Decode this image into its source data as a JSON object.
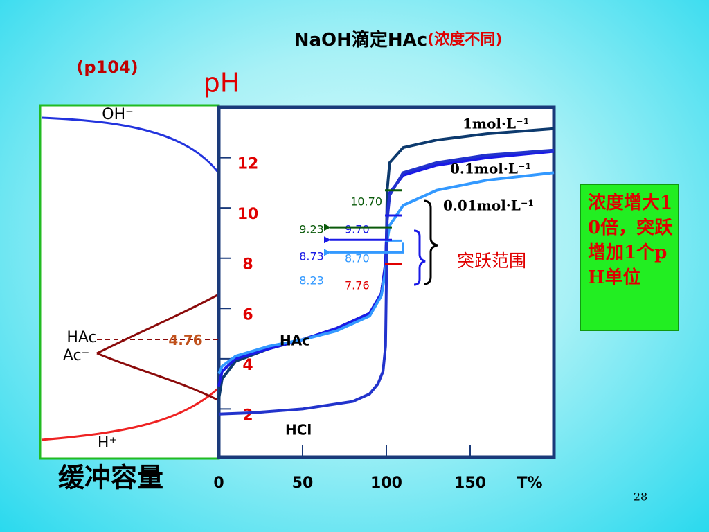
{
  "title": "NaOH滴定HAc",
  "title_suffix": "(浓度不同)",
  "page_ref": "(p104)",
  "species": [
    "OH⁻",
    "HAc",
    "Ac⁻",
    "H⁺"
  ],
  "buffer_label": "缓冲容量",
  "jump_label": "突跃范围",
  "note": "浓度增大10倍，突跃增加1个pH单位",
  "page_number": "28",
  "chart_data": {
    "type": "line",
    "y_label": "pH",
    "x_label": "T%",
    "xlim": [
      0,
      200
    ],
    "ylim": [
      0,
      14
    ],
    "xticks": [
      0,
      50,
      100,
      150
    ],
    "yticks": [
      2,
      4,
      6,
      8,
      10,
      12
    ],
    "series": [
      {
        "name": "1mol·L⁻¹",
        "color": "#0d3a6e",
        "x": [
          0,
          2,
          10,
          30,
          50,
          70,
          90,
          97,
          99.5,
          100,
          100.5,
          102,
          110,
          130,
          160,
          200
        ],
        "values": [
          2.4,
          3.2,
          3.9,
          4.4,
          4.76,
          5.2,
          5.8,
          6.6,
          7.8,
          8.7,
          10.7,
          11.8,
          12.4,
          12.7,
          12.95,
          13.15
        ]
      },
      {
        "name": "0.1mol·L⁻¹",
        "color": "#1a1ae6",
        "x": [
          0,
          2,
          10,
          30,
          50,
          70,
          90,
          97,
          99.5,
          100,
          100.5,
          102,
          110,
          130,
          160,
          200
        ],
        "values": [
          2.9,
          3.5,
          4.0,
          4.4,
          4.76,
          5.2,
          5.8,
          6.6,
          7.8,
          8.7,
          9.7,
          10.6,
          11.3,
          11.7,
          12.0,
          12.25
        ]
      },
      {
        "name": "0.01mol·L⁻¹",
        "color": "#3399ff",
        "x": [
          0,
          2,
          10,
          30,
          50,
          70,
          90,
          97,
          99.5,
          100,
          100.5,
          102,
          110,
          130,
          160,
          200
        ],
        "values": [
          3.4,
          3.7,
          4.1,
          4.5,
          4.76,
          5.1,
          5.7,
          6.5,
          7.5,
          7.76,
          8.7,
          9.3,
          10.1,
          10.7,
          11.1,
          11.4
        ]
      },
      {
        "name": "HCl",
        "color": "#2233cc",
        "x": [
          0,
          20,
          50,
          80,
          90,
          95,
          98,
          99.5,
          100,
          100.5,
          102,
          110,
          130,
          160,
          200
        ],
        "values": [
          1.8,
          1.85,
          2.0,
          2.3,
          2.6,
          3.0,
          3.5,
          4.5,
          7.0,
          9.5,
          10.5,
          11.4,
          11.8,
          12.1,
          12.3
        ]
      }
    ],
    "hac_label": "HAc",
    "pka": {
      "value": 4.76,
      "label": "4.76",
      "color": "#c0501a"
    },
    "endpoints": [
      {
        "value": 10.7,
        "label": "10.70",
        "color": "#0a5a0a"
      },
      {
        "value": 9.7,
        "label": "9.70",
        "color": "#1a1ae6"
      },
      {
        "value": 8.7,
        "label": "8.70",
        "color": "#3399ff"
      },
      {
        "value": 7.76,
        "label": "7.76",
        "color": "#e00000"
      }
    ],
    "arrows": [
      {
        "value": 9.23,
        "label": "9.23",
        "color": "#0a5a0a"
      },
      {
        "value": 8.73,
        "label": "8.73",
        "color": "#1a1ae6"
      },
      {
        "value": 8.23,
        "label": "8.23",
        "color": "#3399ff"
      }
    ]
  }
}
